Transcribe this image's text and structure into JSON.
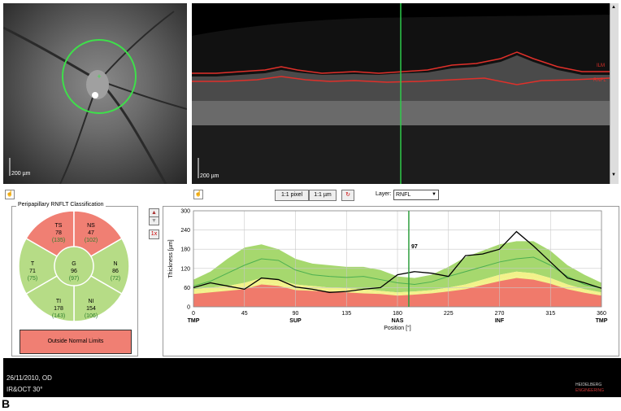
{
  "fundus": {
    "scale_label": "200 µm"
  },
  "oct": {
    "scale_label": "200 µm",
    "layer_ilm": "ILM",
    "layer_rnfl": "RNFL"
  },
  "toolbar": {
    "pixel_label": "1:1 pixel",
    "um_label": "1:1 µm",
    "layer_label": "Layer:",
    "layer_value": "RNFL"
  },
  "classification": {
    "title": "Peripapillary RNFLT Classification",
    "sectors": [
      {
        "id": "TS",
        "value": "78",
        "normal": "(135)"
      },
      {
        "id": "NS",
        "value": "47",
        "normal": "(102)"
      },
      {
        "id": "T",
        "value": "71",
        "normal": "(75)"
      },
      {
        "id": "G",
        "value": "96",
        "normal": "(97)"
      },
      {
        "id": "N",
        "value": "86",
        "normal": "(72)"
      },
      {
        "id": "TI",
        "value": "178",
        "normal": "(143)"
      },
      {
        "id": "NI",
        "value": "154",
        "normal": "(106)"
      }
    ],
    "result": "Outside Normal Limits"
  },
  "side_buttons": {
    "zoom": "1x"
  },
  "chart_data": {
    "type": "line",
    "xlabel": "Position [°]",
    "ylabel": "Thickness [µm]",
    "xlim": [
      0,
      360
    ],
    "ylim": [
      0,
      300
    ],
    "x_ticks": [
      "0",
      "45",
      "90",
      "135",
      "180",
      "225",
      "270",
      "315",
      "360"
    ],
    "y_ticks": [
      "0",
      "60",
      "120",
      "180",
      "240",
      "300"
    ],
    "region_labels": [
      {
        "x": 0,
        "text": "TMP"
      },
      {
        "x": 90,
        "text": "SUP"
      },
      {
        "x": 180,
        "text": "NAS"
      },
      {
        "x": 270,
        "text": "INF"
      },
      {
        "x": 360,
        "text": "TMP"
      }
    ],
    "cursor": {
      "x": 190,
      "label": "97"
    },
    "colors": {
      "green": "#a6d86e",
      "yellow": "#f2f28a",
      "red": "#f07a6b",
      "measured": "#000000",
      "normal_mean": "#4caf50",
      "cursor": "#2e9e3e"
    },
    "x": [
      0,
      15,
      30,
      45,
      60,
      75,
      90,
      105,
      120,
      135,
      150,
      165,
      180,
      195,
      210,
      225,
      240,
      255,
      270,
      285,
      300,
      315,
      330,
      345,
      360
    ],
    "measured": [
      60,
      75,
      65,
      55,
      90,
      85,
      62,
      55,
      45,
      48,
      55,
      60,
      100,
      110,
      105,
      95,
      160,
      165,
      180,
      235,
      190,
      140,
      90,
      75,
      58
    ],
    "normal_mean": [
      65,
      80,
      105,
      130,
      150,
      145,
      115,
      100,
      95,
      92,
      95,
      85,
      75,
      70,
      78,
      95,
      110,
      125,
      140,
      150,
      155,
      130,
      95,
      70,
      58
    ],
    "band_green_upper": [
      85,
      110,
      150,
      185,
      195,
      180,
      150,
      135,
      130,
      125,
      125,
      115,
      95,
      90,
      100,
      125,
      155,
      175,
      195,
      205,
      205,
      175,
      130,
      100,
      75
    ],
    "band_green_lower": [
      55,
      60,
      65,
      75,
      90,
      85,
      70,
      65,
      60,
      58,
      55,
      50,
      45,
      48,
      52,
      60,
      70,
      85,
      100,
      110,
      105,
      90,
      70,
      55,
      45
    ],
    "band_yellow_lower": [
      45,
      50,
      55,
      60,
      75,
      70,
      58,
      55,
      52,
      50,
      48,
      44,
      40,
      42,
      46,
      52,
      60,
      72,
      85,
      95,
      90,
      78,
      60,
      48,
      40
    ],
    "band_red_upper": [
      40,
      45,
      50,
      55,
      70,
      65,
      52,
      50,
      48,
      45,
      42,
      40,
      35,
      38,
      42,
      48,
      55,
      68,
      80,
      90,
      85,
      72,
      55,
      44,
      35
    ]
  },
  "status_bar": {
    "date": "26/11/2010, OD",
    "mode": "IR&OCT 30°",
    "brand_line1": "HEIDELBERG",
    "brand_line2": "ENGINEERING"
  },
  "figure_label": "B"
}
